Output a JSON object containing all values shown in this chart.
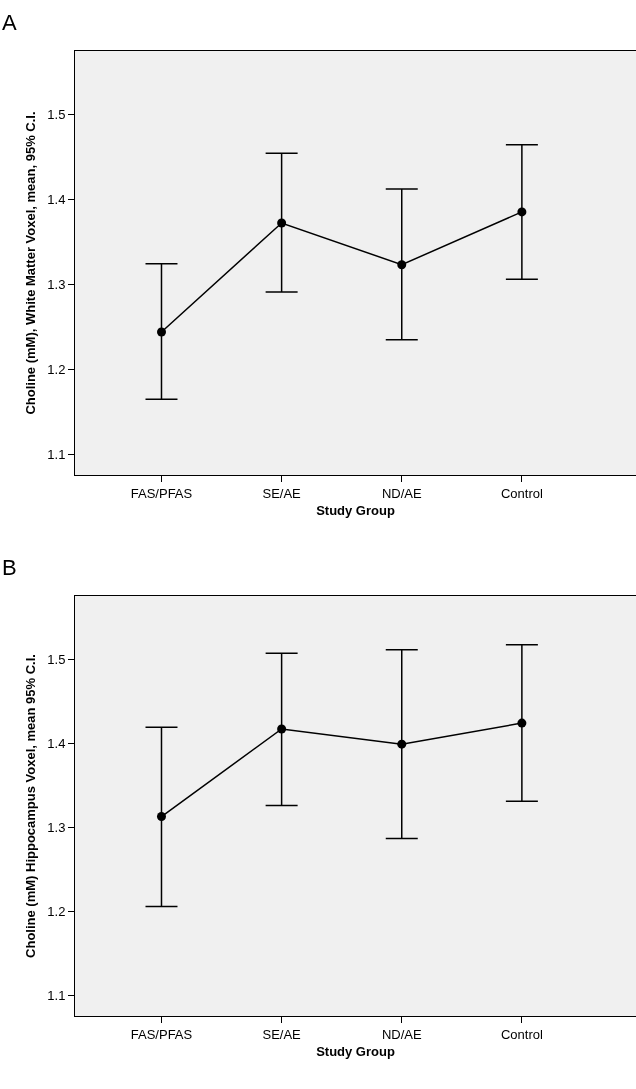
{
  "chart_data": [
    {
      "type": "line",
      "title": "A",
      "xlabel": "Study Group",
      "ylabel": "Choline (mM), White Matter Voxel, mean, 95% C.I.",
      "categories": [
        "FAS/PFAS",
        "SE/AE",
        "ND/AE",
        "Control"
      ],
      "series": [
        {
          "color": "#000000",
          "values": [
            1.244,
            1.372,
            1.323,
            1.385
          ],
          "errors": [
            [
              1.165,
              1.324
            ],
            [
              1.291,
              1.454
            ],
            [
              1.235,
              1.412
            ],
            [
              1.306,
              1.464
            ]
          ]
        }
      ],
      "ylim": [
        1.076,
        1.574
      ],
      "yticks": [
        {
          "value": 1.1,
          "label": "1.1"
        },
        {
          "value": 1.2,
          "label": "1.2"
        },
        {
          "value": 1.3,
          "label": "1.3"
        },
        {
          "value": 1.4,
          "label": "1.4"
        },
        {
          "value": 1.5,
          "label": "1.5"
        }
      ],
      "grid": false,
      "marker": "circle",
      "line_style": "solid"
    },
    {
      "type": "line",
      "title": "B",
      "xlabel": "Study Group",
      "ylabel": "Choline (mM) Hippocampus Voxel, mean 95% C.I.",
      "categories": [
        "FAS/PFAS",
        "SE/AE",
        "ND/AE",
        "Control"
      ],
      "series": [
        {
          "color": "#000000",
          "values": [
            1.313,
            1.417,
            1.399,
            1.424
          ],
          "errors": [
            [
              1.206,
              1.419
            ],
            [
              1.326,
              1.507
            ],
            [
              1.287,
              1.511
            ],
            [
              1.331,
              1.517
            ]
          ]
        }
      ],
      "ylim": [
        1.076,
        1.575
      ],
      "yticks": [
        {
          "value": 1.1,
          "label": "1.1"
        },
        {
          "value": 1.2,
          "label": "1.2"
        },
        {
          "value": 1.3,
          "label": "1.3"
        },
        {
          "value": 1.4,
          "label": "1.4"
        },
        {
          "value": 1.5,
          "label": "1.5"
        }
      ],
      "grid": false,
      "marker": "circle",
      "line_style": "solid"
    }
  ]
}
